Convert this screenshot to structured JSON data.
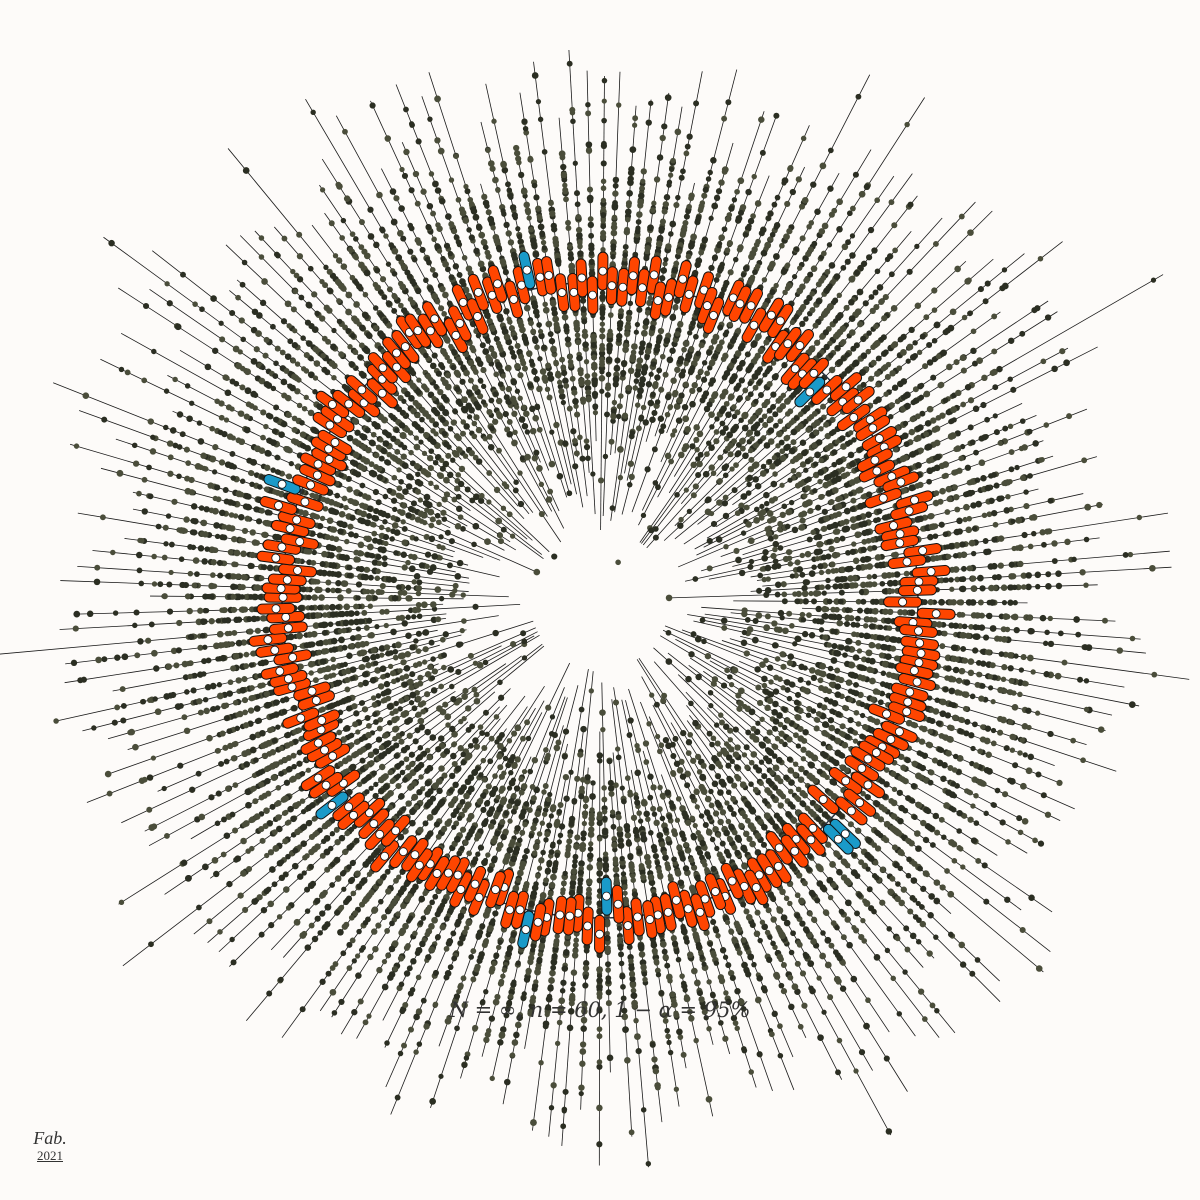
{
  "caption": "N = ∞, n = 60, 1 − α = 95%",
  "signature": {
    "mark": "Fab.",
    "year": "2021"
  },
  "colors": {
    "background": "#fdfbf9",
    "sample_dot": "#4a4d3a",
    "sample_dot_dark": "#2b2e22",
    "interval_hit": "#ff4500",
    "interval_miss": "#1a9ac9",
    "mean_marker": "#ffffff",
    "ray_line": "#1a1a1a"
  },
  "sample_size": 60,
  "confidence": 0.95
}
